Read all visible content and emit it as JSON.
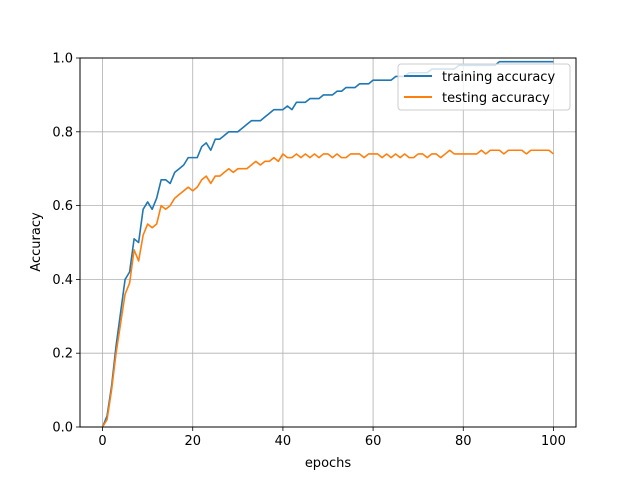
{
  "chart_data": {
    "type": "line",
    "xlabel": "epochs",
    "ylabel": "Accuracy",
    "xlim": [
      -5,
      105
    ],
    "ylim": [
      0,
      1.0
    ],
    "xticks": [
      0,
      20,
      40,
      60,
      80,
      100
    ],
    "yticks": [
      0.0,
      0.2,
      0.4,
      0.6,
      0.8,
      1.0
    ],
    "xtick_labels": [
      "0",
      "20",
      "40",
      "60",
      "80",
      "100"
    ],
    "ytick_labels": [
      "0.0",
      "0.2",
      "0.4",
      "0.6",
      "0.8",
      "1.0"
    ],
    "grid": true,
    "legend_position": "upper-right",
    "x": [
      0,
      1,
      2,
      3,
      4,
      5,
      6,
      7,
      8,
      9,
      10,
      11,
      12,
      13,
      14,
      15,
      16,
      17,
      18,
      19,
      20,
      21,
      22,
      23,
      24,
      25,
      26,
      27,
      28,
      29,
      30,
      31,
      32,
      33,
      34,
      35,
      36,
      37,
      38,
      39,
      40,
      41,
      42,
      43,
      44,
      45,
      46,
      47,
      48,
      49,
      50,
      51,
      52,
      53,
      54,
      55,
      56,
      57,
      58,
      59,
      60,
      61,
      62,
      63,
      64,
      65,
      66,
      67,
      68,
      69,
      70,
      71,
      72,
      73,
      74,
      75,
      76,
      77,
      78,
      79,
      80,
      81,
      82,
      83,
      84,
      85,
      86,
      87,
      88,
      89,
      90,
      91,
      92,
      93,
      94,
      95,
      96,
      97,
      98,
      99,
      100
    ],
    "series": [
      {
        "name": "training accuracy",
        "color": "#1f77b4",
        "values": [
          0.0,
          0.03,
          0.11,
          0.22,
          0.31,
          0.4,
          0.42,
          0.51,
          0.5,
          0.59,
          0.61,
          0.59,
          0.62,
          0.67,
          0.67,
          0.66,
          0.69,
          0.7,
          0.71,
          0.73,
          0.73,
          0.73,
          0.76,
          0.77,
          0.75,
          0.78,
          0.78,
          0.79,
          0.8,
          0.8,
          0.8,
          0.81,
          0.82,
          0.83,
          0.83,
          0.83,
          0.84,
          0.85,
          0.86,
          0.86,
          0.86,
          0.87,
          0.86,
          0.88,
          0.88,
          0.88,
          0.89,
          0.89,
          0.89,
          0.9,
          0.9,
          0.9,
          0.91,
          0.91,
          0.92,
          0.92,
          0.92,
          0.93,
          0.93,
          0.93,
          0.94,
          0.94,
          0.94,
          0.94,
          0.94,
          0.95,
          0.95,
          0.95,
          0.96,
          0.96,
          0.96,
          0.96,
          0.96,
          0.97,
          0.97,
          0.97,
          0.97,
          0.97,
          0.97,
          0.98,
          0.98,
          0.98,
          0.98,
          0.98,
          0.98,
          0.98,
          0.98,
          0.98,
          0.99,
          0.99,
          0.99,
          0.99,
          0.99,
          0.99,
          0.99,
          0.99,
          0.99,
          0.99,
          0.99,
          0.99,
          0.99
        ]
      },
      {
        "name": "testing accuracy",
        "color": "#ff7f0e",
        "values": [
          0.0,
          0.02,
          0.1,
          0.2,
          0.28,
          0.36,
          0.39,
          0.48,
          0.45,
          0.52,
          0.55,
          0.54,
          0.55,
          0.6,
          0.59,
          0.6,
          0.62,
          0.63,
          0.64,
          0.65,
          0.64,
          0.65,
          0.67,
          0.68,
          0.66,
          0.68,
          0.68,
          0.69,
          0.7,
          0.69,
          0.7,
          0.7,
          0.7,
          0.71,
          0.72,
          0.71,
          0.72,
          0.72,
          0.73,
          0.72,
          0.74,
          0.73,
          0.73,
          0.74,
          0.73,
          0.74,
          0.73,
          0.74,
          0.73,
          0.74,
          0.74,
          0.73,
          0.74,
          0.73,
          0.73,
          0.74,
          0.74,
          0.74,
          0.73,
          0.74,
          0.74,
          0.74,
          0.73,
          0.74,
          0.73,
          0.74,
          0.73,
          0.74,
          0.73,
          0.73,
          0.74,
          0.74,
          0.73,
          0.74,
          0.74,
          0.73,
          0.74,
          0.75,
          0.74,
          0.74,
          0.74,
          0.74,
          0.74,
          0.74,
          0.75,
          0.74,
          0.75,
          0.75,
          0.75,
          0.74,
          0.75,
          0.75,
          0.75,
          0.75,
          0.74,
          0.75,
          0.75,
          0.75,
          0.75,
          0.75,
          0.74
        ]
      }
    ]
  }
}
